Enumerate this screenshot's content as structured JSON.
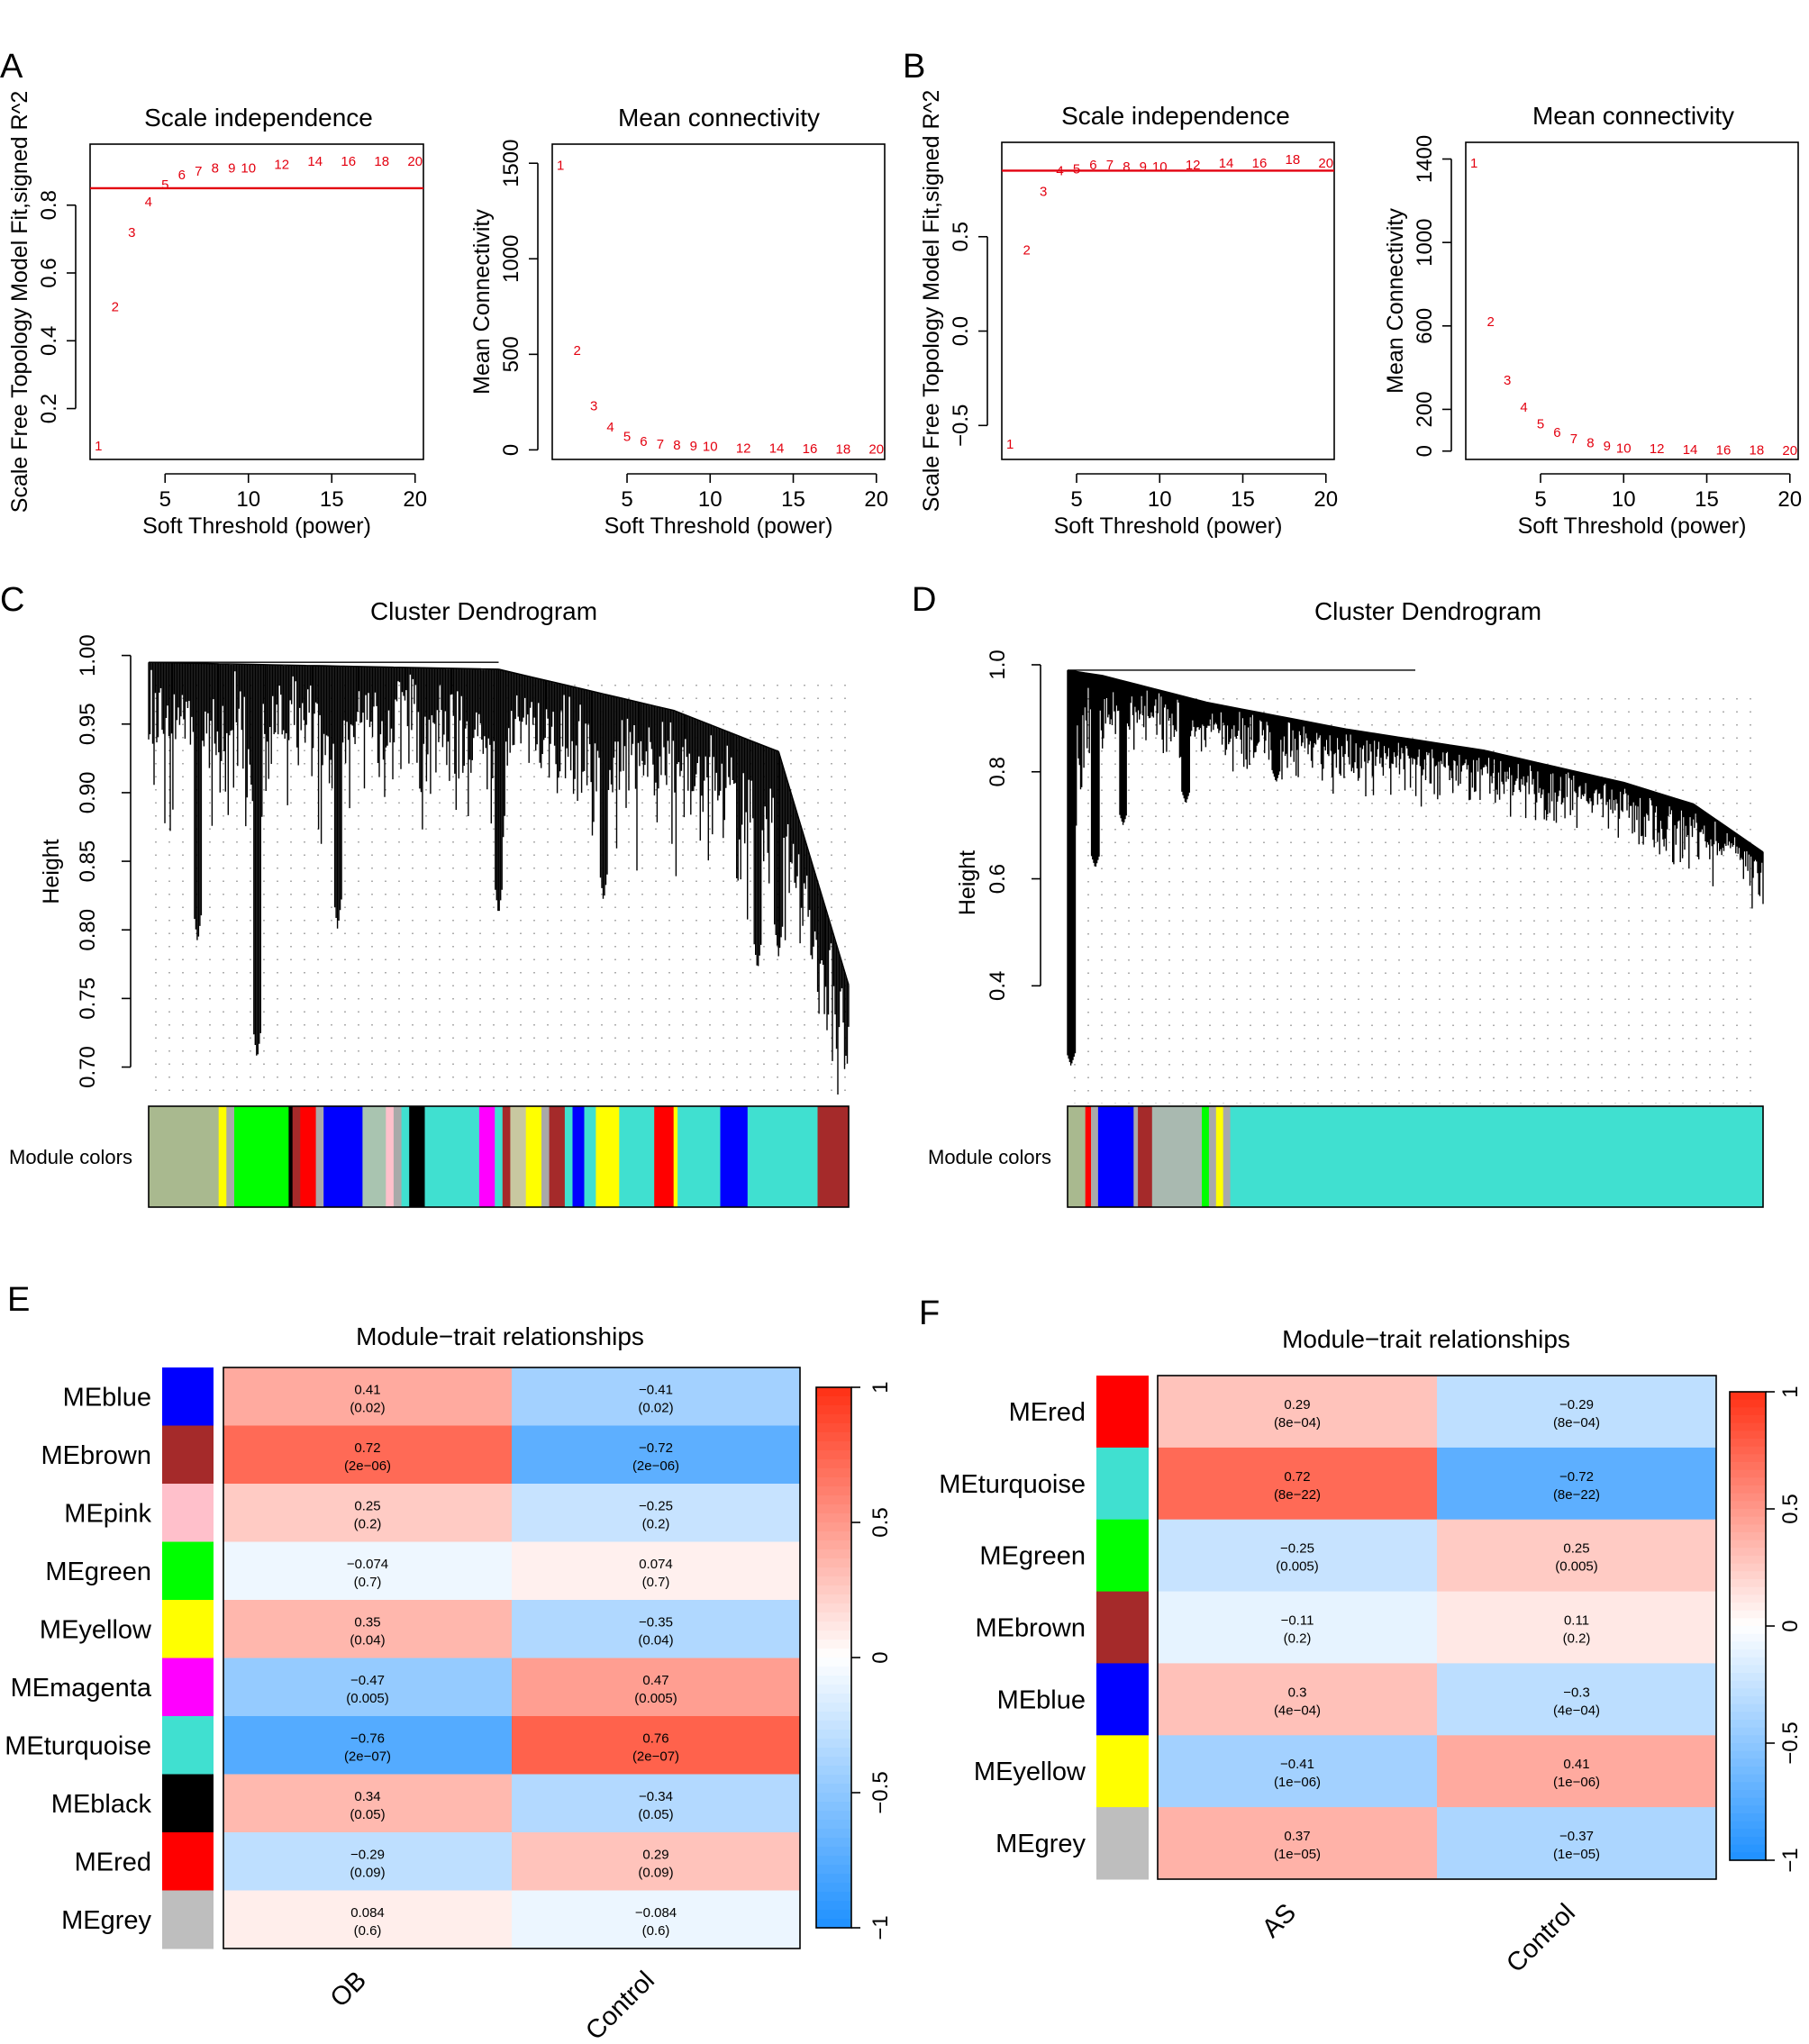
{
  "panels": [
    {
      "letter": "A"
    },
    {
      "letter": "B"
    },
    {
      "letter": "C"
    },
    {
      "letter": "D"
    },
    {
      "letter": "E"
    },
    {
      "letter": "F"
    }
  ],
  "colors": {
    "threshold_line": "#e3000f",
    "dendro": "#000000"
  },
  "chart_data": [
    {
      "id": "A-scale",
      "type": "scatter",
      "title": "Scale independence",
      "xlabel": "Soft Threshold (power)",
      "ylabel": "Scale Free Topology Model Fit,signed R^2",
      "xlim": [
        0.5,
        20.5
      ],
      "ylim": [
        0.05,
        0.98
      ],
      "xticks": [
        5,
        10,
        15,
        20
      ],
      "yticks": [
        0.2,
        0.4,
        0.6,
        0.8
      ],
      "hline": 0.85,
      "x": [
        1,
        2,
        3,
        4,
        5,
        6,
        7,
        8,
        9,
        10,
        12,
        14,
        16,
        18,
        20
      ],
      "y": [
        0.09,
        0.5,
        0.72,
        0.81,
        0.86,
        0.89,
        0.9,
        0.91,
        0.91,
        0.91,
        0.92,
        0.93,
        0.93,
        0.93,
        0.93
      ],
      "labels": [
        "1",
        "2",
        "3",
        "4",
        "5",
        "6",
        "7",
        "8",
        "9",
        "10",
        "12",
        "14",
        "16",
        "18",
        "20"
      ]
    },
    {
      "id": "A-mean",
      "type": "scatter",
      "title": "Mean connectivity",
      "xlabel": "Soft Threshold (power)",
      "ylabel": "Mean Connectivity",
      "xlim": [
        0.5,
        20.5
      ],
      "ylim": [
        -50,
        1600
      ],
      "xticks": [
        5,
        10,
        15,
        20
      ],
      "yticks": [
        0,
        500,
        1000,
        1500
      ],
      "x": [
        1,
        2,
        3,
        4,
        5,
        6,
        7,
        8,
        9,
        10,
        12,
        14,
        16,
        18,
        20
      ],
      "y": [
        1490,
        520,
        230,
        120,
        70,
        45,
        30,
        25,
        20,
        18,
        10,
        8,
        6,
        5,
        4
      ],
      "labels": [
        "1",
        "2",
        "3",
        "4",
        "5",
        "6",
        "7",
        "8",
        "9",
        "10",
        "12",
        "14",
        "16",
        "18",
        "20"
      ]
    },
    {
      "id": "B-scale",
      "type": "scatter",
      "title": "Scale independence",
      "xlabel": "Soft Threshold (power)",
      "ylabel": "Scale Free Topology Model Fit,signed R^2",
      "xlim": [
        0.5,
        20.5
      ],
      "ylim": [
        -0.68,
        1.0
      ],
      "xticks": [
        5,
        10,
        15,
        20
      ],
      "yticks": [
        -0.5,
        0.0,
        0.5
      ],
      "hline": 0.85,
      "x": [
        1,
        2,
        3,
        4,
        5,
        6,
        7,
        8,
        9,
        10,
        12,
        14,
        16,
        18,
        20
      ],
      "y": [
        -0.6,
        0.43,
        0.74,
        0.85,
        0.86,
        0.88,
        0.88,
        0.87,
        0.87,
        0.87,
        0.88,
        0.89,
        0.89,
        0.91,
        0.89
      ],
      "labels": [
        "1",
        "2",
        "3",
        "4",
        "5",
        "6",
        "7",
        "8",
        "9",
        "10",
        "12",
        "14",
        "16",
        "18",
        "20"
      ]
    },
    {
      "id": "B-mean",
      "type": "scatter",
      "title": "Mean connectivity",
      "xlabel": "Soft Threshold (power)",
      "ylabel": "Mean Connectivity",
      "xlim": [
        0.5,
        20.5
      ],
      "ylim": [
        -40,
        1480
      ],
      "xticks": [
        5,
        10,
        15,
        20
      ],
      "yticks": [
        0,
        200,
        600,
        1000,
        1400
      ],
      "x": [
        1,
        2,
        3,
        4,
        5,
        6,
        7,
        8,
        9,
        10,
        12,
        14,
        16,
        18,
        20
      ],
      "y": [
        1380,
        620,
        340,
        210,
        130,
        90,
        60,
        40,
        25,
        15,
        12,
        8,
        6,
        5,
        4
      ],
      "labels": [
        "1",
        "2",
        "3",
        "4",
        "5",
        "6",
        "7",
        "8",
        "9",
        "10",
        "12",
        "14",
        "16",
        "18",
        "20"
      ]
    },
    {
      "id": "C-dendro",
      "type": "dendrogram",
      "title": "Cluster Dendrogram",
      "ylabel": "Height",
      "ylim": [
        0.68,
        1.005
      ],
      "yticks": [
        0.7,
        0.75,
        0.8,
        0.85,
        0.9,
        0.95,
        1.0
      ],
      "ytick_labels": [
        "0.70",
        "0.75",
        "0.80",
        "0.85",
        "0.90",
        "0.95",
        "1.00"
      ],
      "color_bar_label": "Module colors",
      "trend": [
        [
          0,
          0.995
        ],
        [
          0.5,
          0.99
        ],
        [
          0.75,
          0.96
        ],
        [
          0.9,
          0.93
        ],
        [
          1,
          0.76
        ]
      ],
      "deep_dips": [
        [
          0.07,
          0.79
        ],
        [
          0.155,
          0.705
        ],
        [
          0.27,
          0.8
        ],
        [
          0.5,
          0.81
        ],
        [
          0.65,
          0.82
        ],
        [
          0.87,
          0.77
        ],
        [
          0.9,
          0.78
        ]
      ],
      "module_segments": [
        {
          "color": "#a9b98f",
          "w": 0.09
        },
        {
          "color": "#ffff00",
          "w": 0.01
        },
        {
          "color": "#a9a9a9",
          "w": 0.01
        },
        {
          "color": "#00ff00",
          "w": 0.07
        },
        {
          "color": "#000000",
          "w": 0.005
        },
        {
          "color": "#a52a2a",
          "w": 0.01
        },
        {
          "color": "#ff0000",
          "w": 0.02
        },
        {
          "color": "#a9a9a9",
          "w": 0.01
        },
        {
          "color": "#0000ff",
          "w": 0.05
        },
        {
          "color": "#a9c4b0",
          "w": 0.03
        },
        {
          "color": "#ffc0cb",
          "w": 0.01
        },
        {
          "color": "#a9a9a9",
          "w": 0.01
        },
        {
          "color": "#40e0d0",
          "w": 0.01
        },
        {
          "color": "#000000",
          "w": 0.02
        },
        {
          "color": "#40e0d0",
          "w": 0.07
        },
        {
          "color": "#ff00ff",
          "w": 0.02
        },
        {
          "color": "#40e0d0",
          "w": 0.01
        },
        {
          "color": "#a52a2a",
          "w": 0.01
        },
        {
          "color": "#c8c8a0",
          "w": 0.02
        },
        {
          "color": "#ffff00",
          "w": 0.02
        },
        {
          "color": "#a9a9a9",
          "w": 0.01
        },
        {
          "color": "#a52a2a",
          "w": 0.02
        },
        {
          "color": "#40e0d0",
          "w": 0.01
        },
        {
          "color": "#0000ff",
          "w": 0.015
        },
        {
          "color": "#40e0d0",
          "w": 0.015
        },
        {
          "color": "#ffff00",
          "w": 0.03
        },
        {
          "color": "#40e0d0",
          "w": 0.045
        },
        {
          "color": "#ff0000",
          "w": 0.025
        },
        {
          "color": "#ffff00",
          "w": 0.005
        },
        {
          "color": "#40e0d0",
          "w": 0.055
        },
        {
          "color": "#0000ff",
          "w": 0.035
        },
        {
          "color": "#40e0d0",
          "w": 0.09
        },
        {
          "color": "#a52a2a",
          "w": 0.04
        }
      ]
    },
    {
      "id": "D-dendro",
      "type": "dendrogram",
      "title": "Cluster Dendrogram",
      "ylabel": "Height",
      "ylim": [
        0.18,
        1.005
      ],
      "yticks": [
        0.4,
        0.6,
        0.8,
        1.0
      ],
      "ytick_labels": [
        "0.4",
        "0.6",
        "0.8",
        "1.0"
      ],
      "color_bar_label": "Module colors",
      "trend": [
        [
          0,
          0.99
        ],
        [
          0.05,
          0.98
        ],
        [
          0.2,
          0.93
        ],
        [
          0.4,
          0.88
        ],
        [
          0.6,
          0.84
        ],
        [
          0.8,
          0.78
        ],
        [
          0.9,
          0.74
        ],
        [
          1,
          0.65
        ]
      ],
      "deep_dips": [
        [
          0.005,
          0.25
        ],
        [
          0.04,
          0.62
        ],
        [
          0.08,
          0.7
        ],
        [
          0.17,
          0.74
        ],
        [
          0.3,
          0.78
        ],
        [
          0.5,
          0.82
        ]
      ],
      "module_segments": [
        {
          "color": "#a9b98f",
          "w": 0.025
        },
        {
          "color": "#ff0000",
          "w": 0.008
        },
        {
          "color": "#a9a9a9",
          "w": 0.01
        },
        {
          "color": "#0000ff",
          "w": 0.05
        },
        {
          "color": "#a9a9a9",
          "w": 0.006
        },
        {
          "color": "#a52a2a",
          "w": 0.02
        },
        {
          "color": "#a9b9b0",
          "w": 0.07
        },
        {
          "color": "#00ff00",
          "w": 0.01
        },
        {
          "color": "#a9a9a9",
          "w": 0.01
        },
        {
          "color": "#ffff00",
          "w": 0.01
        },
        {
          "color": "#a9a9a9",
          "w": 0.01
        },
        {
          "color": "#40e0d0",
          "w": 0.75
        }
      ]
    },
    {
      "id": "E-heatmap",
      "type": "heatmap",
      "title": "Module−trait relationships",
      "columns": [
        "OB",
        "Control"
      ],
      "rows": [
        {
          "name": "MEblue",
          "color": "#0000ff",
          "values": [
            0.41,
            -0.41
          ],
          "cells": [
            [
              "0.41",
              "(0.02)"
            ],
            [
              "−0.41",
              "(0.02)"
            ]
          ]
        },
        {
          "name": "MEbrown",
          "color": "#a52a2a",
          "values": [
            0.72,
            -0.72
          ],
          "cells": [
            [
              "0.72",
              "(2e−06)"
            ],
            [
              "−0.72",
              "(2e−06)"
            ]
          ]
        },
        {
          "name": "MEpink",
          "color": "#ffc0cb",
          "values": [
            0.25,
            -0.25
          ],
          "cells": [
            [
              "0.25",
              "(0.2)"
            ],
            [
              "−0.25",
              "(0.2)"
            ]
          ]
        },
        {
          "name": "MEgreen",
          "color": "#00ff00",
          "values": [
            -0.074,
            0.074
          ],
          "cells": [
            [
              "−0.074",
              "(0.7)"
            ],
            [
              "0.074",
              "(0.7)"
            ]
          ]
        },
        {
          "name": "MEyellow",
          "color": "#ffff00",
          "values": [
            0.35,
            -0.35
          ],
          "cells": [
            [
              "0.35",
              "(0.04)"
            ],
            [
              "−0.35",
              "(0.04)"
            ]
          ]
        },
        {
          "name": "MEmagenta",
          "color": "#ff00ff",
          "values": [
            -0.47,
            0.47
          ],
          "cells": [
            [
              "−0.47",
              "(0.005)"
            ],
            [
              "0.47",
              "(0.005)"
            ]
          ]
        },
        {
          "name": "MEturquoise",
          "color": "#40e0d0",
          "values": [
            -0.76,
            0.76
          ],
          "cells": [
            [
              "−0.76",
              "(2e−07)"
            ],
            [
              "0.76",
              "(2e−07)"
            ]
          ]
        },
        {
          "name": "MEblack",
          "color": "#000000",
          "values": [
            0.34,
            -0.34
          ],
          "cells": [
            [
              "0.34",
              "(0.05)"
            ],
            [
              "−0.34",
              "(0.05)"
            ]
          ]
        },
        {
          "name": "MEred",
          "color": "#ff0000",
          "values": [
            -0.29,
            0.29
          ],
          "cells": [
            [
              "−0.29",
              "(0.09)"
            ],
            [
              "0.29",
              "(0.09)"
            ]
          ]
        },
        {
          "name": "MEgrey",
          "color": "#bebebe",
          "values": [
            0.084,
            -0.084
          ],
          "cells": [
            [
              "0.084",
              "(0.6)"
            ],
            [
              "−0.084",
              "(0.6)"
            ]
          ]
        }
      ],
      "legend_ticks": [
        1,
        0.5,
        0,
        -0.5,
        -1
      ],
      "legend_tick_labels": [
        "1",
        "0.5",
        "0",
        "−0.5",
        "−1"
      ]
    },
    {
      "id": "F-heatmap",
      "type": "heatmap",
      "title": "Module−trait relationships",
      "columns": [
        "AS",
        "Control"
      ],
      "rows": [
        {
          "name": "MEred",
          "color": "#ff0000",
          "values": [
            0.29,
            -0.29
          ],
          "cells": [
            [
              "0.29",
              "(8e−04)"
            ],
            [
              "−0.29",
              "(8e−04)"
            ]
          ]
        },
        {
          "name": "MEturquoise",
          "color": "#40e0d0",
          "values": [
            0.72,
            -0.72
          ],
          "cells": [
            [
              "0.72",
              "(8e−22)"
            ],
            [
              "−0.72",
              "(8e−22)"
            ]
          ]
        },
        {
          "name": "MEgreen",
          "color": "#00ff00",
          "values": [
            -0.25,
            0.25
          ],
          "cells": [
            [
              "−0.25",
              "(0.005)"
            ],
            [
              "0.25",
              "(0.005)"
            ]
          ]
        },
        {
          "name": "MEbrown",
          "color": "#a52a2a",
          "values": [
            -0.11,
            0.11
          ],
          "cells": [
            [
              "−0.11",
              "(0.2)"
            ],
            [
              "0.11",
              "(0.2)"
            ]
          ]
        },
        {
          "name": "MEblue",
          "color": "#0000ff",
          "values": [
            0.3,
            -0.3
          ],
          "cells": [
            [
              "0.3",
              "(4e−04)"
            ],
            [
              "−0.3",
              "(4e−04)"
            ]
          ]
        },
        {
          "name": "MEyellow",
          "color": "#ffff00",
          "values": [
            -0.41,
            0.41
          ],
          "cells": [
            [
              "−0.41",
              "(1e−06)"
            ],
            [
              "0.41",
              "(1e−06)"
            ]
          ]
        },
        {
          "name": "MEgrey",
          "color": "#bebebe",
          "values": [
            0.37,
            -0.37
          ],
          "cells": [
            [
              "0.37",
              "(1e−05)"
            ],
            [
              "−0.37",
              "(1e−05)"
            ]
          ]
        }
      ],
      "legend_ticks": [
        1,
        0.5,
        0,
        -0.5,
        -1
      ],
      "legend_tick_labels": [
        "1",
        "0.5",
        "0",
        "−0.5",
        "−1"
      ]
    }
  ]
}
